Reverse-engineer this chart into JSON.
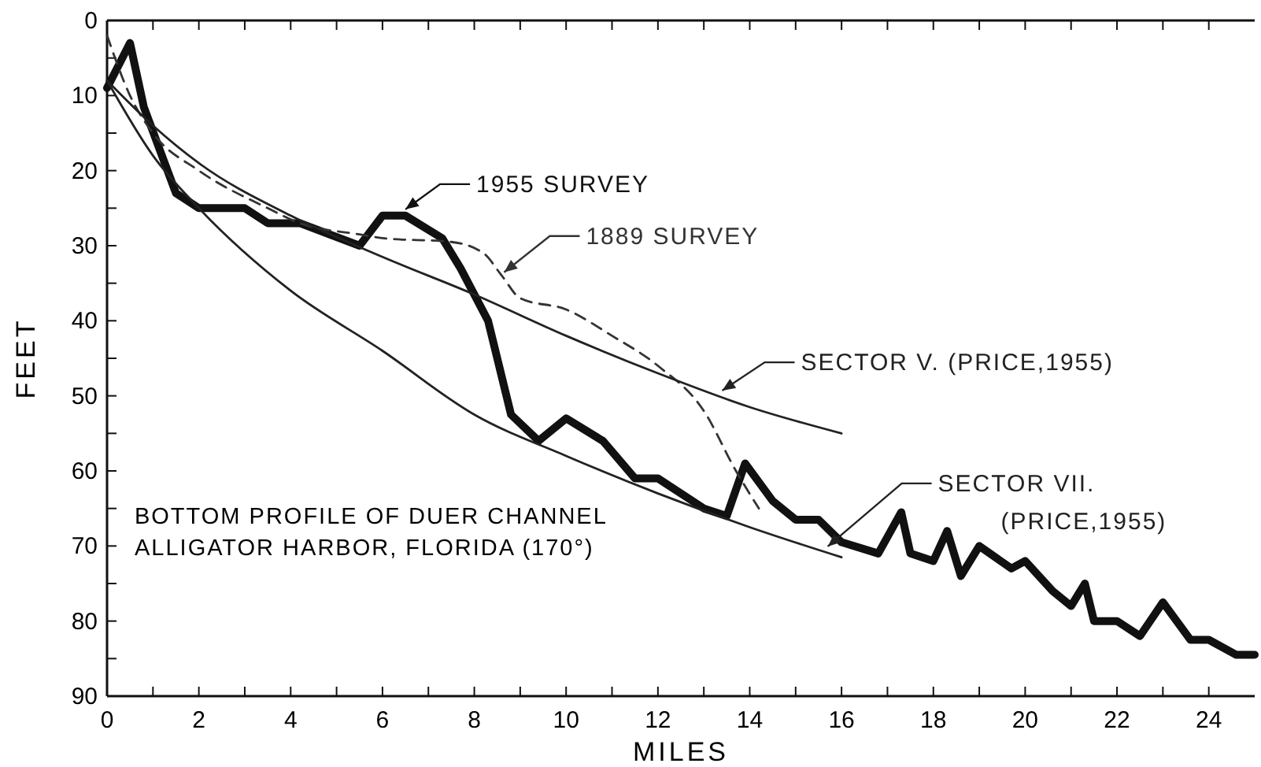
{
  "chart_data": {
    "type": "line",
    "xlabel": "MILES",
    "ylabel": "FEET",
    "xlim": [
      0,
      25
    ],
    "ylim": [
      90,
      0
    ],
    "xticks": [
      0,
      {
        "value": 1,
        "label": null
      },
      2,
      {
        "value": 3,
        "label": null
      },
      4,
      {
        "value": 5,
        "label": null
      },
      6,
      {
        "value": 7,
        "label": null
      },
      8,
      {
        "value": 9,
        "label": null
      },
      10,
      {
        "value": 11,
        "label": null
      },
      12,
      {
        "value": 13,
        "label": null
      },
      14,
      {
        "value": 15,
        "label": null
      },
      16,
      {
        "value": 17,
        "label": null
      },
      18,
      {
        "value": 19,
        "label": null
      },
      20,
      {
        "value": 21,
        "label": null
      },
      22,
      {
        "value": 23,
        "label": null
      },
      24
    ],
    "yticks": [
      0,
      {
        "value": 5,
        "label": null
      },
      10,
      {
        "value": 15,
        "label": null
      },
      20,
      {
        "value": 25,
        "label": null
      },
      30,
      {
        "value": 35,
        "label": null
      },
      40,
      {
        "value": 45,
        "label": null
      },
      50,
      {
        "value": 55,
        "label": null
      },
      60,
      {
        "value": 65,
        "label": null
      },
      70,
      {
        "value": 75,
        "label": null
      },
      80,
      {
        "value": 85,
        "label": null
      },
      90
    ],
    "grid": false,
    "legend": "top",
    "marker": "none",
    "annotations": [
      "BOTTOM PROFILE OF DUER CHANNEL\nALLIGATOR HARBOR, FLORIDA  (170°)"
    ],
    "series": [
      {
        "name": "1955 SURVEY",
        "color": "#111111",
        "line_style": "solid",
        "x": [
          0,
          0.5,
          0.8,
          1.5,
          2,
          3,
          3.5,
          4.2,
          5.5,
          6,
          6.5,
          7.3,
          7.7,
          8.3,
          8.8,
          9.4,
          10,
          10.8,
          11.5,
          12,
          13,
          13.5,
          13.9,
          14.5,
          15,
          15.5,
          16,
          16.8,
          17.3,
          17.5,
          18,
          18.3,
          18.6,
          19,
          19.7,
          20,
          20.6,
          21,
          21.3,
          21.5,
          22,
          22.5,
          23,
          23.6,
          24,
          24.6,
          25
        ],
        "values": [
          9,
          3,
          11.5,
          23,
          25,
          25,
          27,
          27,
          30,
          26,
          26,
          29,
          33,
          40,
          52.5,
          56,
          53,
          56,
          61,
          61,
          65,
          66,
          59,
          64,
          66.5,
          66.5,
          69.5,
          71,
          65.5,
          71,
          72,
          68,
          74,
          70,
          73,
          72,
          76,
          78,
          75,
          80,
          80,
          82,
          77.5,
          82.5,
          82.5,
          84.5,
          84.5
        ]
      },
      {
        "name": "1889 SURVEY",
        "color": "#333333",
        "line_style": "dashed",
        "x": [
          0,
          0.5,
          1,
          2,
          3.5,
          4.2,
          5.5,
          6,
          7.5,
          8.2,
          8.6,
          9,
          10,
          11,
          12,
          13,
          13.7,
          14.2
        ],
        "values": [
          2,
          10,
          15,
          20,
          25,
          27,
          28.5,
          29,
          29.5,
          31,
          34,
          37,
          38.5,
          42,
          46,
          52,
          60,
          65
        ]
      },
      {
        "name": "SECTOR V. (PRICE,1955)",
        "color": "#222222",
        "line_style": "solid",
        "x": [
          0,
          1,
          2,
          4,
          6,
          8,
          10,
          12,
          14,
          16
        ],
        "values": [
          8,
          14,
          19,
          26,
          31.5,
          36.5,
          42,
          47,
          51.5,
          55
        ]
      },
      {
        "name": "SECTOR VII. (PRICE,1955)",
        "color": "#222222",
        "line_style": "solid",
        "x": [
          0,
          1,
          2,
          4,
          6,
          8,
          10,
          12,
          14,
          16
        ],
        "values": [
          8,
          18,
          25,
          36,
          44,
          52.5,
          58,
          63,
          67.5,
          71.5
        ]
      }
    ]
  }
}
